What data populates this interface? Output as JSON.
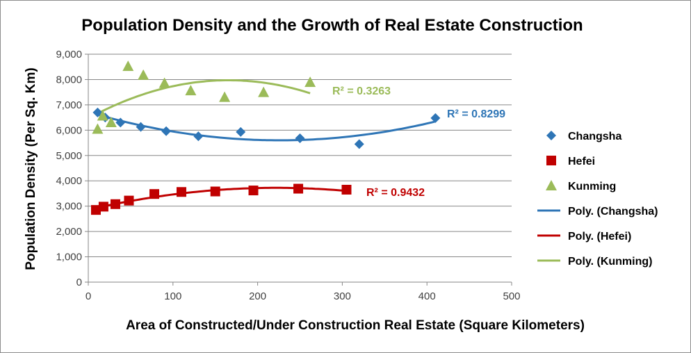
{
  "chart_data": {
    "type": "scatter",
    "title": "Population Density and the Growth of Real Estate Construction",
    "xlabel": "Area of Constructed/Under Construction Real Estate (Square Kilometers)",
    "ylabel": "Population Density  (Per Sq. Km)",
    "xlim": [
      0,
      500
    ],
    "ylim": [
      0,
      9000
    ],
    "x_ticks": [
      "0",
      "100",
      "200",
      "300",
      "400",
      "500"
    ],
    "y_ticks": [
      "0",
      "1,000",
      "2,000",
      "3,000",
      "4,000",
      "5,000",
      "6,000",
      "7,000",
      "8,000",
      "9,000"
    ],
    "grid": "horizontal",
    "legend_position": "right",
    "series": [
      {
        "name": "Changsha",
        "marker": "diamond",
        "color": "#2e75b6",
        "points": [
          [
            11,
            6700
          ],
          [
            20,
            6500
          ],
          [
            38,
            6300
          ],
          [
            62,
            6130
          ],
          [
            92,
            5960
          ],
          [
            130,
            5760
          ],
          [
            180,
            5930
          ],
          [
            250,
            5680
          ],
          [
            320,
            5450
          ],
          [
            410,
            6480
          ]
        ]
      },
      {
        "name": "Hefei",
        "marker": "square",
        "color": "#c00000",
        "points": [
          [
            9,
            2850
          ],
          [
            18,
            2980
          ],
          [
            32,
            3080
          ],
          [
            48,
            3220
          ],
          [
            78,
            3480
          ],
          [
            110,
            3560
          ],
          [
            150,
            3580
          ],
          [
            195,
            3620
          ],
          [
            248,
            3690
          ],
          [
            305,
            3650
          ]
        ]
      },
      {
        "name": "Kunming",
        "marker": "triangle",
        "color": "#9bbb59",
        "points": [
          [
            11,
            6050
          ],
          [
            17,
            6570
          ],
          [
            27,
            6310
          ],
          [
            47,
            8530
          ],
          [
            65,
            8180
          ],
          [
            90,
            7860
          ],
          [
            121,
            7570
          ],
          [
            161,
            7310
          ],
          [
            207,
            7500
          ],
          [
            262,
            7900
          ]
        ]
      }
    ],
    "trendlines": [
      {
        "name": "Poly. (Changsha)",
        "series": "Changsha",
        "order": 2,
        "color": "#2e75b6",
        "r2": "R² = 0.8299",
        "x_range": [
          11,
          410
        ]
      },
      {
        "name": "Poly. (Hefei)",
        "series": "Hefei",
        "order": 2,
        "color": "#c00000",
        "r2": "R² = 0.9432",
        "x_range": [
          9,
          305
        ]
      },
      {
        "name": "Poly. (Kunming)",
        "series": "Kunming",
        "order": 2,
        "color": "#9bbb59",
        "r2": "R² = 0.3263",
        "x_range": [
          11,
          262
        ]
      }
    ]
  }
}
